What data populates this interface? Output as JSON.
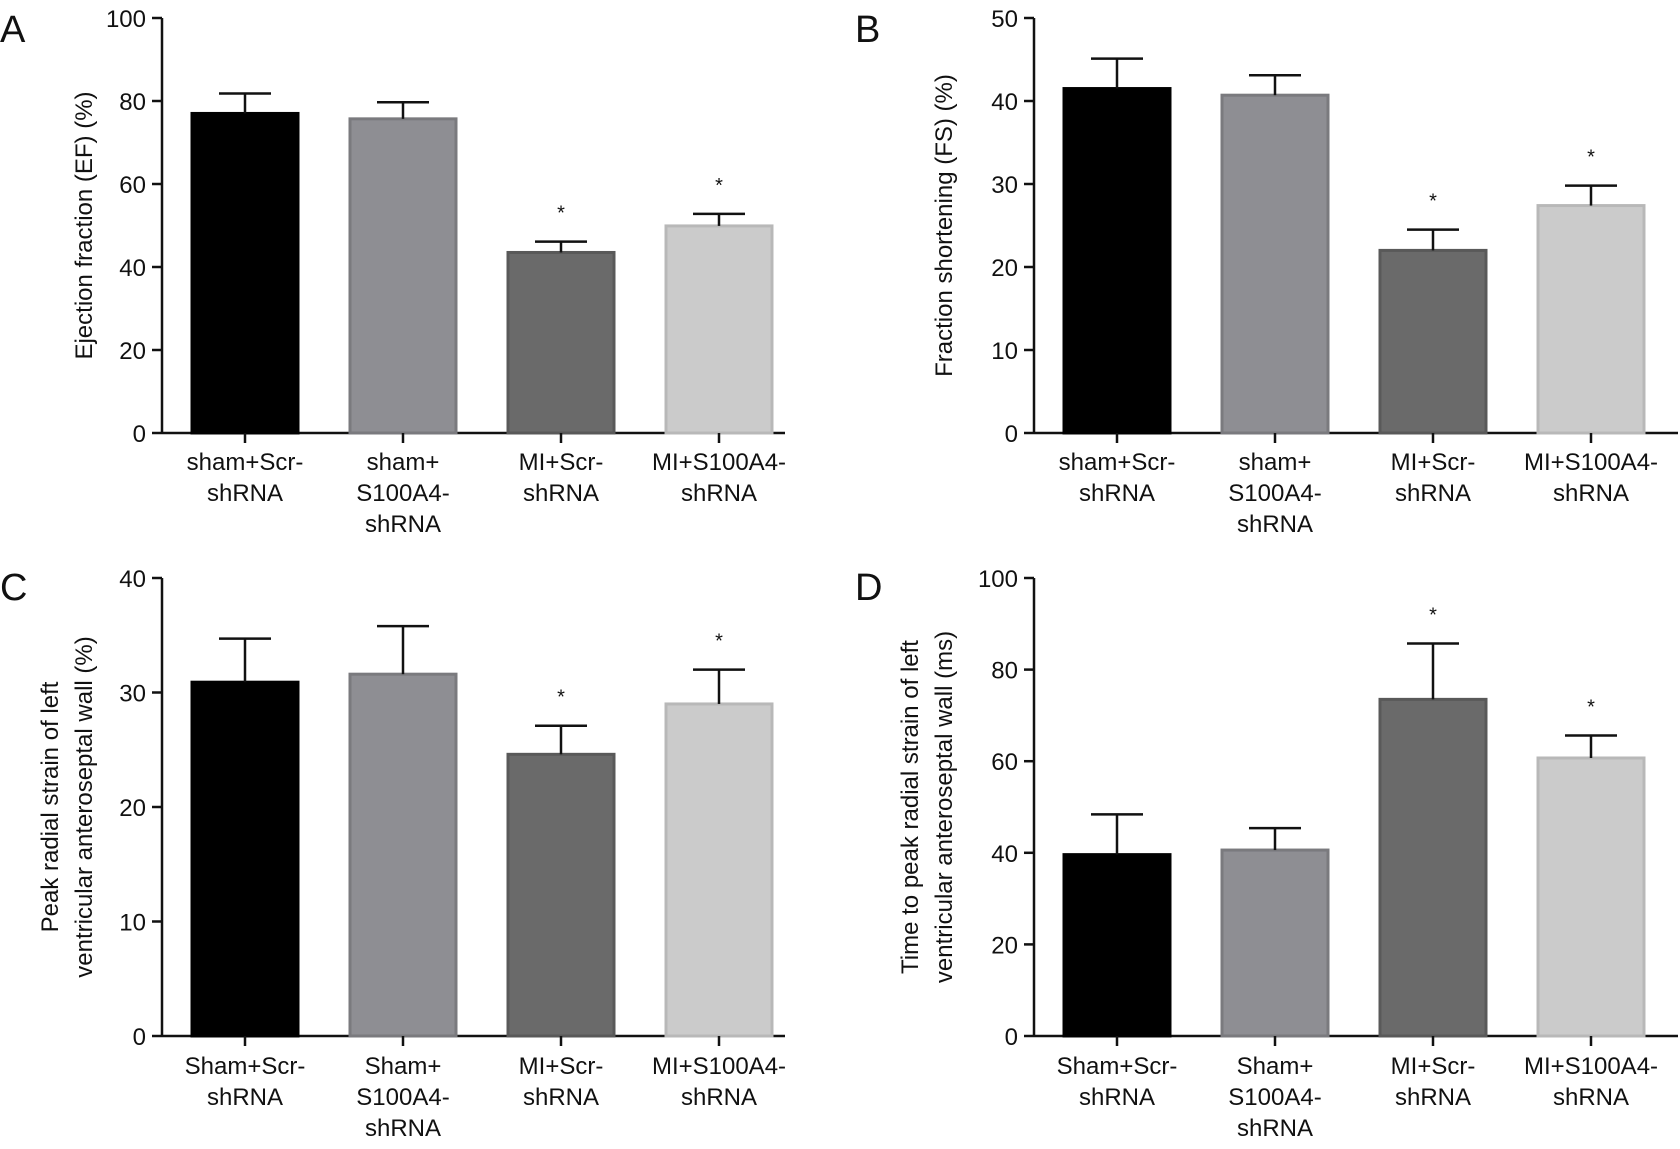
{
  "figure": {
    "background": "#ffffff",
    "bar_colors": [
      "#000000",
      "#8e8e93",
      "#6a6a6a",
      "#cbcbcb"
    ],
    "bar_edge_colors": [
      "#000000",
      "#7a7a7e",
      "#595959",
      "#b8b8b8"
    ]
  },
  "chart_data": [
    {
      "panel": "A",
      "type": "bar",
      "ylabel": "Ejection fraction (EF) (%)",
      "ylim": [
        0,
        100
      ],
      "yticks": [
        "0",
        "20",
        "40",
        "60",
        "80",
        "100"
      ],
      "categories": [
        [
          "sham+Scr-",
          "shRNA"
        ],
        [
          "sham+",
          "S100A4-",
          "shRNA"
        ],
        [
          "MI+Scr-",
          "shRNA"
        ],
        [
          "MI+S100A4-",
          "shRNA"
        ]
      ],
      "values": [
        77,
        75.7,
        43.5,
        49.9
      ],
      "errors": [
        4.8,
        4.0,
        2.6,
        2.9
      ],
      "significance": [
        "",
        "",
        "*",
        "*"
      ],
      "grid": false
    },
    {
      "panel": "B",
      "type": "bar",
      "ylabel": "Fraction shortening (FS) (%)",
      "ylim": [
        0,
        50
      ],
      "yticks": [
        "0",
        "10",
        "20",
        "30",
        "40",
        "50"
      ],
      "categories": [
        [
          "sham+Scr-",
          "shRNA"
        ],
        [
          "sham+",
          "S100A4-",
          "shRNA"
        ],
        [
          "MI+Scr-",
          "shRNA"
        ],
        [
          "MI+S100A4-",
          "shRNA"
        ]
      ],
      "values": [
        41.5,
        40.7,
        22,
        27.4
      ],
      "errors": [
        3.6,
        2.4,
        2.5,
        2.4
      ],
      "significance": [
        "",
        "",
        "*",
        "*"
      ],
      "grid": false
    },
    {
      "panel": "C",
      "type": "bar",
      "ylabel": [
        "Peak radial strain of left",
        "ventricular anteroseptal wall (%)"
      ],
      "ylim": [
        0,
        40
      ],
      "yticks": [
        "0",
        "10",
        "20",
        "30",
        "40"
      ],
      "categories": [
        [
          "Sham+Scr-",
          "shRNA"
        ],
        [
          "Sham+",
          "S100A4-",
          "shRNA"
        ],
        [
          "MI+Scr-",
          "shRNA"
        ],
        [
          "MI+S100A4-",
          "shRNA"
        ]
      ],
      "values": [
        30.9,
        31.6,
        24.6,
        29
      ],
      "errors": [
        3.8,
        4.2,
        2.5,
        3.0
      ],
      "significance": [
        "",
        "",
        "*",
        "*"
      ],
      "grid": false
    },
    {
      "panel": "D",
      "type": "bar",
      "ylabel": [
        "Time to peak radial strain of left",
        "ventricular anteroseptal wall (ms)"
      ],
      "ylim": [
        0,
        100
      ],
      "yticks": [
        "0",
        "20",
        "40",
        "60",
        "80",
        "100"
      ],
      "categories": [
        [
          "Sham+Scr-",
          "shRNA"
        ],
        [
          "Sham+",
          "S100A4-",
          "shRNA"
        ],
        [
          "MI+Scr-",
          "shRNA"
        ],
        [
          "MI+S100A4-",
          "shRNA"
        ]
      ],
      "values": [
        39.6,
        40.6,
        73.5,
        60.7
      ],
      "errors": [
        8.8,
        4.8,
        12.2,
        4.9
      ],
      "significance": [
        "",
        "",
        "*",
        "*"
      ],
      "grid": false
    }
  ]
}
